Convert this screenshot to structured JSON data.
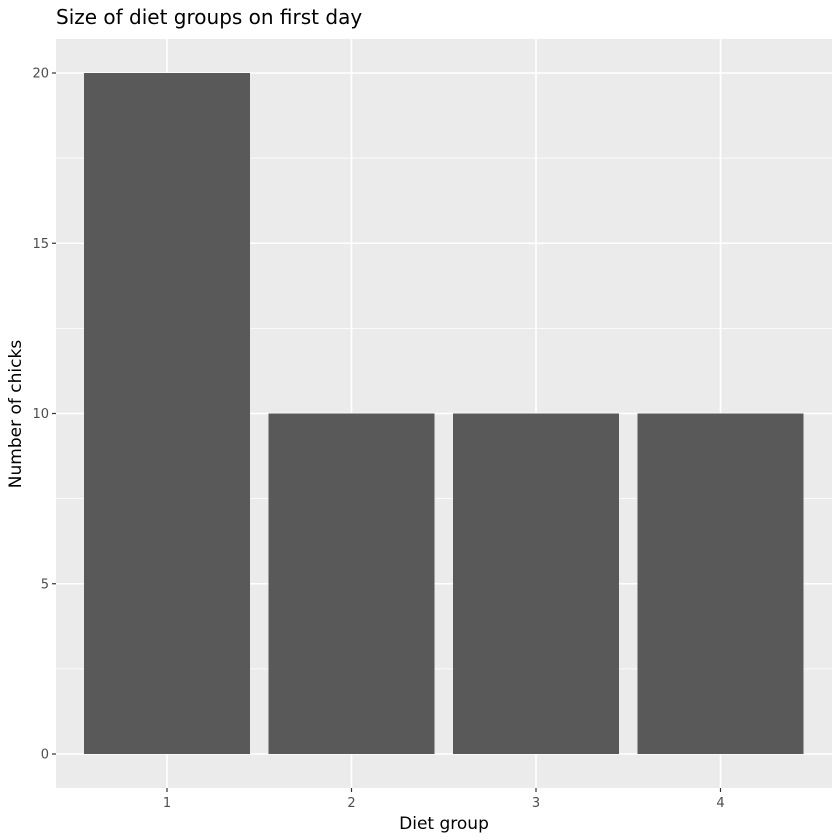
{
  "chart_data": {
    "type": "bar",
    "title": "Size of diet groups on first day",
    "xlabel": "Diet group",
    "ylabel": "Number of chicks",
    "categories": [
      "1",
      "2",
      "3",
      "4"
    ],
    "values": [
      20,
      10,
      10,
      10
    ],
    "yticks": [
      0,
      5,
      10,
      15,
      20
    ],
    "ylim": [
      0,
      20
    ],
    "grid": true,
    "colors": {
      "panel_background": "#EBEBEB",
      "gridline": "#FFFFFF",
      "bar_fill": "#595959",
      "tick_text": "#4D4D4D"
    }
  }
}
